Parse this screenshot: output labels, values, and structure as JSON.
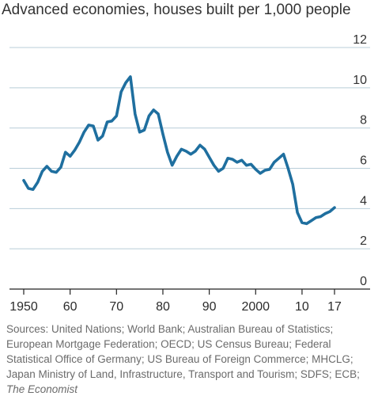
{
  "chart_data": {
    "type": "line",
    "title": "Advanced economies, houses built per 1,000 people",
    "xlabel": "",
    "ylabel": "",
    "xlim": [
      1948,
      2019
    ],
    "ylim": [
      0,
      12
    ],
    "x_tick_values": [
      1950,
      1960,
      1970,
      1980,
      1990,
      2000,
      2010,
      2017
    ],
    "x_tick_labels": [
      "1950",
      "60",
      "70",
      "80",
      "90",
      "2000",
      "10",
      "17"
    ],
    "y_tick_values": [
      0,
      2,
      4,
      6,
      8,
      10,
      12
    ],
    "y_tick_labels": [
      "0",
      "2",
      "4",
      "6",
      "8",
      "10",
      "12"
    ],
    "grid": "horizontal",
    "axis_side": "right",
    "line_color": "#1f6f9f",
    "grid_color": "#b9cdd8",
    "axis_color": "#222222",
    "series": [
      {
        "x": [
          1950,
          1951,
          1952,
          1953,
          1954,
          1955,
          1956,
          1957,
          1958,
          1959,
          1960,
          1961,
          1962,
          1963,
          1964,
          1965,
          1966,
          1967,
          1968,
          1969,
          1970,
          1971,
          1972,
          1973,
          1974,
          1975,
          1976,
          1977,
          1978,
          1979,
          1980,
          1981,
          1982,
          1983,
          1984,
          1985,
          1986,
          1987,
          1988,
          1989,
          1990,
          1991,
          1992,
          1993,
          1994,
          1995,
          1996,
          1997,
          1998,
          1999,
          2000,
          2001,
          2002,
          2003,
          2004,
          2005,
          2006,
          2007,
          2008,
          2009,
          2010,
          2011,
          2012,
          2013,
          2014,
          2015,
          2016,
          2017
        ],
        "values": [
          5.4,
          5.0,
          4.95,
          5.3,
          5.85,
          6.1,
          5.85,
          5.8,
          6.05,
          6.8,
          6.6,
          6.9,
          7.3,
          7.8,
          8.15,
          8.1,
          7.4,
          7.6,
          8.3,
          8.35,
          8.6,
          9.8,
          10.25,
          10.55,
          8.7,
          7.8,
          7.9,
          8.6,
          8.9,
          8.7,
          7.7,
          6.8,
          6.15,
          6.6,
          6.95,
          6.85,
          6.7,
          6.85,
          7.15,
          6.95,
          6.55,
          6.15,
          5.85,
          6.0,
          6.5,
          6.45,
          6.3,
          6.4,
          6.15,
          6.2,
          5.95,
          5.75,
          5.9,
          5.95,
          6.3,
          6.5,
          6.7,
          6.0,
          5.2,
          3.8,
          3.3,
          3.25,
          3.4,
          3.55,
          3.6,
          3.75,
          3.85,
          4.05
        ]
      }
    ]
  },
  "source": {
    "text": "Sources: United Nations; World Bank; Australian Bureau of Statistics; European Mortgage Federation; OECD; US Census Bureau; Federal Statistical Office of Germany; US Bureau of Foreign Commerce; MHCLG; Japan Ministry of Land, Infrastructure, Transport and Tourism; SDFS; ECB; ",
    "emphasis": "The Economist"
  }
}
